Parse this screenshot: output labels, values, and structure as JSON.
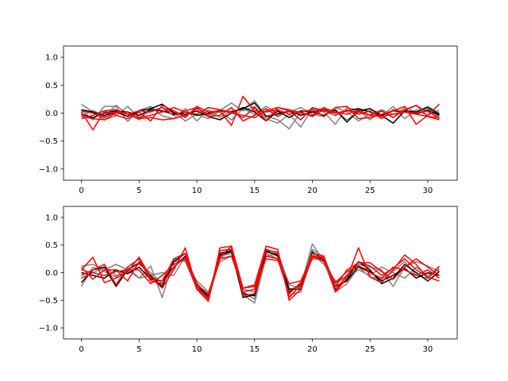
{
  "colors": {
    "gray_series": "#808080",
    "dark_series": "#000000",
    "red_series": "#ff0000"
  },
  "chart_data": [
    {
      "type": "line",
      "title": "",
      "xlabel": "",
      "ylabel": "",
      "xlim": [
        -1.55,
        32.55
      ],
      "ylim": [
        -1.2,
        1.2
      ],
      "xticks": [
        0,
        5,
        10,
        15,
        20,
        25,
        30
      ],
      "yticks": [
        -1.0,
        -0.5,
        0.0,
        0.5,
        1.0
      ],
      "xtick_labels": [
        "0",
        "5",
        "10",
        "15",
        "20",
        "25",
        "30"
      ],
      "ytick_labels": [
        "−1.0",
        "−0.5",
        "0.0",
        "0.5",
        "1.0"
      ],
      "grid": false,
      "x": [
        0,
        1,
        2,
        3,
        4,
        5,
        6,
        7,
        8,
        9,
        10,
        11,
        12,
        13,
        14,
        15,
        16,
        17,
        18,
        19,
        20,
        21,
        22,
        23,
        24,
        25,
        26,
        27,
        28,
        29,
        30,
        31
      ],
      "series": [
        {
          "color": "#808080",
          "alpha": 1.0,
          "values": [
            0.16,
            0.02,
            -0.12,
            -0.05,
            0.12,
            -0.08,
            0.04,
            0.1,
            0.02,
            -0.14,
            -0.02,
            -0.1,
            0.05,
            0.18,
            0.04,
            0.12,
            -0.1,
            -0.18,
            -0.02,
            -0.25,
            0.08,
            0.02,
            -0.2,
            0.1,
            0.05,
            -0.12,
            0.04,
            -0.08,
            0.1,
            0.02,
            0.12,
            0.0
          ]
        },
        {
          "color": "#808080",
          "alpha": 1.0,
          "values": [
            0.05,
            -0.12,
            0.12,
            0.12,
            -0.15,
            0.05,
            0.12,
            -0.05,
            -0.1,
            0.08,
            -0.14,
            0.06,
            -0.08,
            0.04,
            0.06,
            0.22,
            -0.05,
            -0.12,
            -0.28,
            0.02,
            0.06,
            0.08,
            0.04,
            -0.12,
            0.02,
            0.08,
            -0.06,
            0.12,
            -0.1,
            0.06,
            -0.04,
            0.05
          ]
        },
        {
          "color": "#808080",
          "alpha": 1.0,
          "values": [
            -0.05,
            0.05,
            -0.06,
            0.14,
            -0.02,
            -0.12,
            0.1,
            0.02,
            0.04,
            -0.06,
            0.1,
            -0.04,
            0.02,
            -0.12,
            0.08,
            -0.02,
            0.12,
            0.0,
            0.02,
            0.1,
            -0.02,
            -0.06,
            0.1,
            0.02,
            -0.14,
            -0.02,
            0.06,
            -0.02,
            0.04,
            0.14,
            0.02,
            -0.06
          ]
        },
        {
          "color": "#000000",
          "alpha": 1.0,
          "values": [
            -0.02,
            -0.08,
            0.0,
            0.04,
            0.02,
            -0.04,
            0.06,
            0.04,
            -0.02,
            0.02,
            -0.04,
            0.0,
            0.04,
            0.02,
            0.08,
            0.18,
            -0.06,
            -0.02,
            0.04,
            -0.04,
            0.02,
            0.06,
            0.0,
            0.04,
            0.08,
            0.02,
            -0.04,
            0.04,
            0.02,
            -0.02,
            0.06,
            -0.04
          ]
        },
        {
          "color": "#000000",
          "alpha": 1.0,
          "values": [
            0.06,
            0.02,
            -0.04,
            0.02,
            -0.06,
            0.04,
            0.08,
            0.16,
            0.0,
            -0.02,
            0.04,
            -0.06,
            -0.12,
            0.0,
            0.1,
            0.02,
            -0.14,
            0.04,
            -0.08,
            0.04,
            0.02,
            -0.04,
            0.06,
            -0.16,
            0.04,
            0.08,
            -0.04,
            -0.18,
            0.04,
            0.02,
            0.1,
            -0.02
          ]
        },
        {
          "color": "#ff0000",
          "alpha": 1.0,
          "values": [
            0.02,
            -0.3,
            0.04,
            -0.04,
            -0.1,
            0.02,
            -0.14,
            0.14,
            0.04,
            -0.08,
            0.12,
            0.02,
            0.04,
            -0.22,
            0.3,
            0.04,
            0.02,
            0.06,
            -0.02,
            0.02,
            0.06,
            -0.06,
            0.1,
            0.12,
            -0.1,
            -0.08,
            -0.02,
            0.04,
            0.12,
            -0.2,
            -0.04,
            0.16
          ]
        },
        {
          "color": "#ff0000",
          "alpha": 1.0,
          "values": [
            -0.1,
            -0.04,
            0.04,
            0.06,
            -0.02,
            -0.08,
            -0.04,
            0.02,
            0.1,
            0.02,
            -0.02,
            0.1,
            0.06,
            0.02,
            -0.08,
            0.1,
            -0.14,
            0.1,
            0.04,
            0.02,
            -0.06,
            0.06,
            0.02,
            -0.02,
            0.06,
            -0.04,
            0.04,
            -0.08,
            0.06,
            0.14,
            -0.06,
            -0.08
          ]
        },
        {
          "color": "#ff0000",
          "alpha": 1.0,
          "values": [
            0.04,
            0.0,
            -0.08,
            0.02,
            -0.02,
            0.04,
            0.02,
            0.1,
            -0.04,
            0.04,
            0.1,
            -0.06,
            -0.04,
            0.1,
            -0.14,
            -0.04,
            0.08,
            -0.06,
            0.04,
            -0.12,
            0.1,
            0.04,
            -0.04,
            0.06,
            -0.02,
            0.04,
            -0.1,
            0.06,
            0.02,
            0.0,
            0.04,
            -0.1
          ]
        },
        {
          "color": "#ff0000",
          "alpha": 1.0,
          "values": [
            -0.06,
            -0.1,
            -0.12,
            0.0,
            0.02,
            -0.1,
            -0.08,
            -0.12,
            -0.1,
            -0.04,
            0.08,
            -0.02,
            0.06,
            0.0,
            -0.04,
            -0.08,
            0.04,
            0.1,
            0.06,
            0.0,
            -0.04,
            0.1,
            0.0,
            0.04,
            0.02,
            -0.04,
            -0.06,
            -0.02,
            0.02,
            -0.02,
            -0.06,
            -0.12
          ]
        }
      ]
    },
    {
      "type": "line",
      "title": "",
      "xlabel": "",
      "ylabel": "",
      "xlim": [
        -1.55,
        32.55
      ],
      "ylim": [
        -1.2,
        1.2
      ],
      "xticks": [
        0,
        5,
        10,
        15,
        20,
        25,
        30
      ],
      "yticks": [
        -1.0,
        -0.5,
        0.0,
        0.5,
        1.0
      ],
      "xtick_labels": [
        "0",
        "5",
        "10",
        "15",
        "20",
        "25",
        "30"
      ],
      "ytick_labels": [
        "−1.0",
        "−0.5",
        "0.0",
        "0.5",
        "1.0"
      ],
      "grid": false,
      "x": [
        0,
        1,
        2,
        3,
        4,
        5,
        6,
        7,
        8,
        9,
        10,
        11,
        12,
        13,
        14,
        15,
        16,
        17,
        18,
        19,
        20,
        21,
        22,
        23,
        24,
        25,
        26,
        27,
        28,
        29,
        30,
        31
      ],
      "series": [
        {
          "color": "#808080",
          "alpha": 1.0,
          "values": [
            -0.25,
            0.1,
            0.02,
            -0.08,
            0.1,
            -0.1,
            0.12,
            -0.45,
            0.25,
            0.2,
            -0.28,
            -0.5,
            0.3,
            0.35,
            -0.4,
            -0.55,
            0.3,
            0.35,
            -0.3,
            -0.25,
            0.52,
            0.2,
            -0.35,
            -0.2,
            0.1,
            -0.08,
            -0.12,
            0.02,
            0.2,
            -0.05,
            -0.1,
            0.08
          ]
        },
        {
          "color": "#808080",
          "alpha": 1.0,
          "values": [
            0.12,
            0.15,
            0.05,
            0.15,
            0.05,
            -0.1,
            -0.05,
            0.0,
            -0.05,
            0.3,
            -0.2,
            -0.4,
            0.25,
            0.42,
            -0.35,
            -0.48,
            0.4,
            0.38,
            -0.22,
            -0.28,
            0.42,
            0.28,
            -0.2,
            -0.05,
            0.15,
            0.1,
            0.05,
            -0.25,
            0.1,
            0.2,
            0.12,
            0.02
          ]
        },
        {
          "color": "#808080",
          "alpha": 1.0,
          "values": [
            0.05,
            0.0,
            0.1,
            -0.05,
            0.0,
            0.15,
            0.0,
            -0.2,
            0.2,
            0.22,
            -0.15,
            -0.35,
            0.2,
            0.3,
            -0.3,
            -0.35,
            0.35,
            0.25,
            -0.4,
            -0.35,
            0.35,
            0.15,
            -0.15,
            -0.1,
            0.05,
            -0.05,
            0.1,
            0.0,
            -0.1,
            0.1,
            -0.05,
            0.05
          ]
        },
        {
          "color": "#000000",
          "alpha": 1.0,
          "values": [
            -0.18,
            0.05,
            0.1,
            -0.25,
            0.05,
            0.18,
            -0.05,
            -0.25,
            0.2,
            0.35,
            -0.25,
            -0.42,
            0.35,
            0.4,
            -0.45,
            -0.4,
            0.4,
            0.3,
            -0.35,
            -0.2,
            0.3,
            0.25,
            -0.3,
            -0.12,
            0.2,
            0.05,
            -0.2,
            -0.1,
            0.15,
            0.0,
            -0.15,
            0.02
          ]
        },
        {
          "color": "#000000",
          "alpha": 1.0,
          "values": [
            0.0,
            -0.05,
            -0.1,
            0.05,
            -0.02,
            0.1,
            -0.12,
            -0.15,
            0.1,
            0.3,
            -0.2,
            -0.45,
            0.32,
            0.38,
            -0.38,
            -0.42,
            0.38,
            0.32,
            -0.3,
            -0.3,
            0.38,
            0.22,
            -0.25,
            -0.15,
            0.12,
            0.02,
            -0.15,
            -0.05,
            0.08,
            -0.1,
            0.0,
            -0.05
          ]
        },
        {
          "color": "#ff0000",
          "alpha": 1.0,
          "values": [
            0.05,
            0.28,
            -0.18,
            -0.1,
            0.02,
            0.28,
            -0.08,
            -0.28,
            0.05,
            0.45,
            -0.3,
            -0.52,
            0.45,
            0.48,
            -0.28,
            -0.22,
            0.48,
            0.42,
            -0.5,
            -0.3,
            0.28,
            0.28,
            -0.35,
            -0.1,
            0.45,
            -0.08,
            -0.18,
            0.05,
            0.32,
            0.15,
            -0.1,
            0.12
          ]
        },
        {
          "color": "#ff0000",
          "alpha": 1.0,
          "values": [
            -0.05,
            0.05,
            0.15,
            -0.22,
            0.1,
            0.25,
            -0.15,
            -0.2,
            0.1,
            0.28,
            -0.25,
            -0.48,
            0.4,
            0.42,
            -0.35,
            -0.3,
            0.42,
            0.35,
            -0.45,
            -0.22,
            0.35,
            0.3,
            -0.32,
            -0.05,
            0.2,
            0.12,
            -0.05,
            0.08,
            0.25,
            0.05,
            -0.08,
            -0.15
          ]
        },
        {
          "color": "#ff0000",
          "alpha": 1.0,
          "values": [
            0.1,
            -0.12,
            0.05,
            0.05,
            -0.15,
            0.2,
            -0.1,
            -0.15,
            0.25,
            0.35,
            -0.22,
            -0.38,
            0.28,
            0.48,
            -0.42,
            -0.38,
            0.3,
            0.25,
            -0.38,
            -0.18,
            0.25,
            0.25,
            -0.25,
            0.05,
            0.18,
            0.18,
            0.02,
            -0.12,
            0.1,
            0.25,
            0.1,
            -0.05
          ]
        },
        {
          "color": "#ff0000",
          "alpha": 1.0,
          "values": [
            -0.1,
            0.0,
            -0.05,
            0.02,
            0.05,
            0.05,
            -0.2,
            -0.05,
            0.15,
            0.25,
            -0.3,
            -0.45,
            0.25,
            0.3,
            -0.28,
            -0.25,
            0.25,
            0.22,
            -0.2,
            -0.15,
            0.3,
            0.2,
            -0.18,
            0.02,
            0.1,
            0.0,
            -0.1,
            0.1,
            0.05,
            -0.05,
            0.05,
            -0.1
          ]
        }
      ]
    }
  ]
}
